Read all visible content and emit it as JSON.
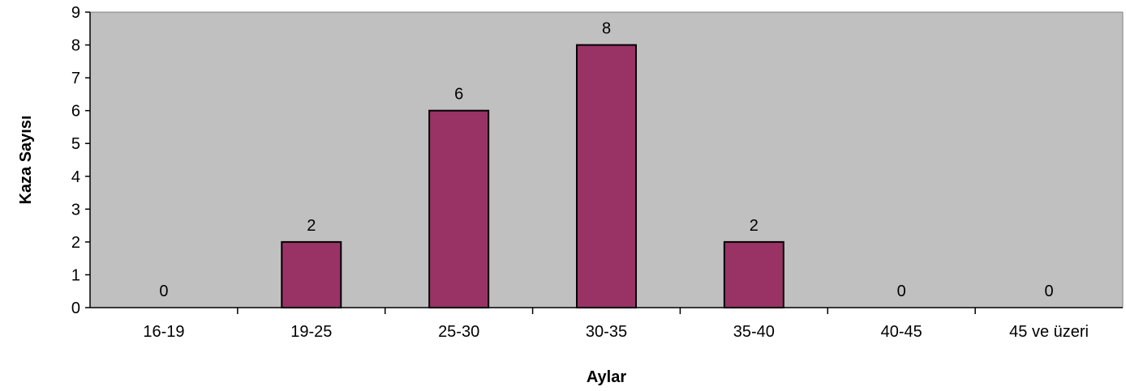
{
  "chart_data": {
    "type": "bar",
    "categories": [
      "16-19",
      "19-25",
      "25-30",
      "30-35",
      "35-40",
      "40-45",
      "45 ve üzeri"
    ],
    "values": [
      0,
      2,
      6,
      8,
      2,
      0,
      0
    ],
    "title": "",
    "xlabel": "Aylar",
    "ylabel": "Kaza Sayısı",
    "ylim": [
      0,
      9
    ],
    "yticks": [
      "0",
      "1",
      "2",
      "3",
      "4",
      "5",
      "6",
      "7",
      "8",
      "9"
    ],
    "data_labels": [
      "0",
      "2",
      "6",
      "8",
      "2",
      "0",
      "0"
    ],
    "grid": false,
    "legend": "none",
    "colors": {
      "plot_background": "#c0c0c0",
      "bar_fill": "#993366",
      "bar_stroke": "#000000",
      "axis": "#000000"
    }
  }
}
